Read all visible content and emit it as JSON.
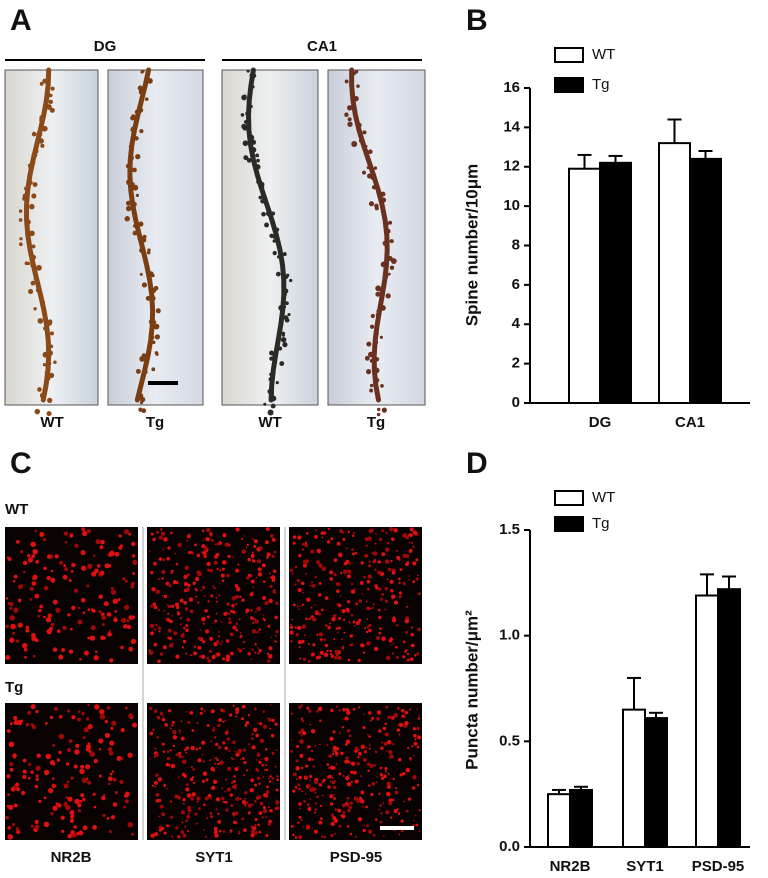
{
  "panel_labels": [
    "A",
    "B",
    "C",
    "D"
  ],
  "panel_a": {
    "groups": [
      "DG",
      "CA1"
    ],
    "image_labels": [
      "WT",
      "Tg",
      "WT",
      "Tg"
    ]
  },
  "panel_c": {
    "row_labels": [
      "WT",
      "Tg"
    ],
    "column_labels": [
      "NR2B",
      "SYT1",
      "PSD-95"
    ]
  },
  "chart_data": [
    {
      "type": "bar",
      "y_label": "Spine number/10μm",
      "categories": [
        "DG",
        "CA1"
      ],
      "series": [
        {
          "name": "WT",
          "color": "#ffffff",
          "values": [
            11.9,
            13.2
          ],
          "errors": [
            0.7,
            1.2
          ]
        },
        {
          "name": "Tg",
          "color": "#000000",
          "values": [
            12.2,
            12.4
          ],
          "errors": [
            0.35,
            0.4
          ]
        }
      ],
      "ylim": [
        0,
        16
      ],
      "yticks": [
        0,
        2,
        4,
        6,
        8,
        10,
        12,
        14,
        16
      ]
    },
    {
      "type": "bar",
      "y_label": "Puncta number/μm²",
      "categories": [
        "NR2B",
        "SYT1",
        "PSD-95"
      ],
      "series": [
        {
          "name": "WT",
          "color": "#ffffff",
          "values": [
            0.25,
            0.65,
            1.19
          ],
          "errors": [
            0.02,
            0.15,
            0.1
          ]
        },
        {
          "name": "Tg",
          "color": "#000000",
          "values": [
            0.27,
            0.61,
            1.22
          ],
          "errors": [
            0.015,
            0.025,
            0.06
          ]
        }
      ],
      "ylim": [
        0,
        1.5
      ],
      "yticks": [
        {
          "value": 0,
          "label": "0.0"
        },
        0.5,
        {
          "value": 1,
          "label": "1.0"
        },
        1.5
      ]
    }
  ]
}
